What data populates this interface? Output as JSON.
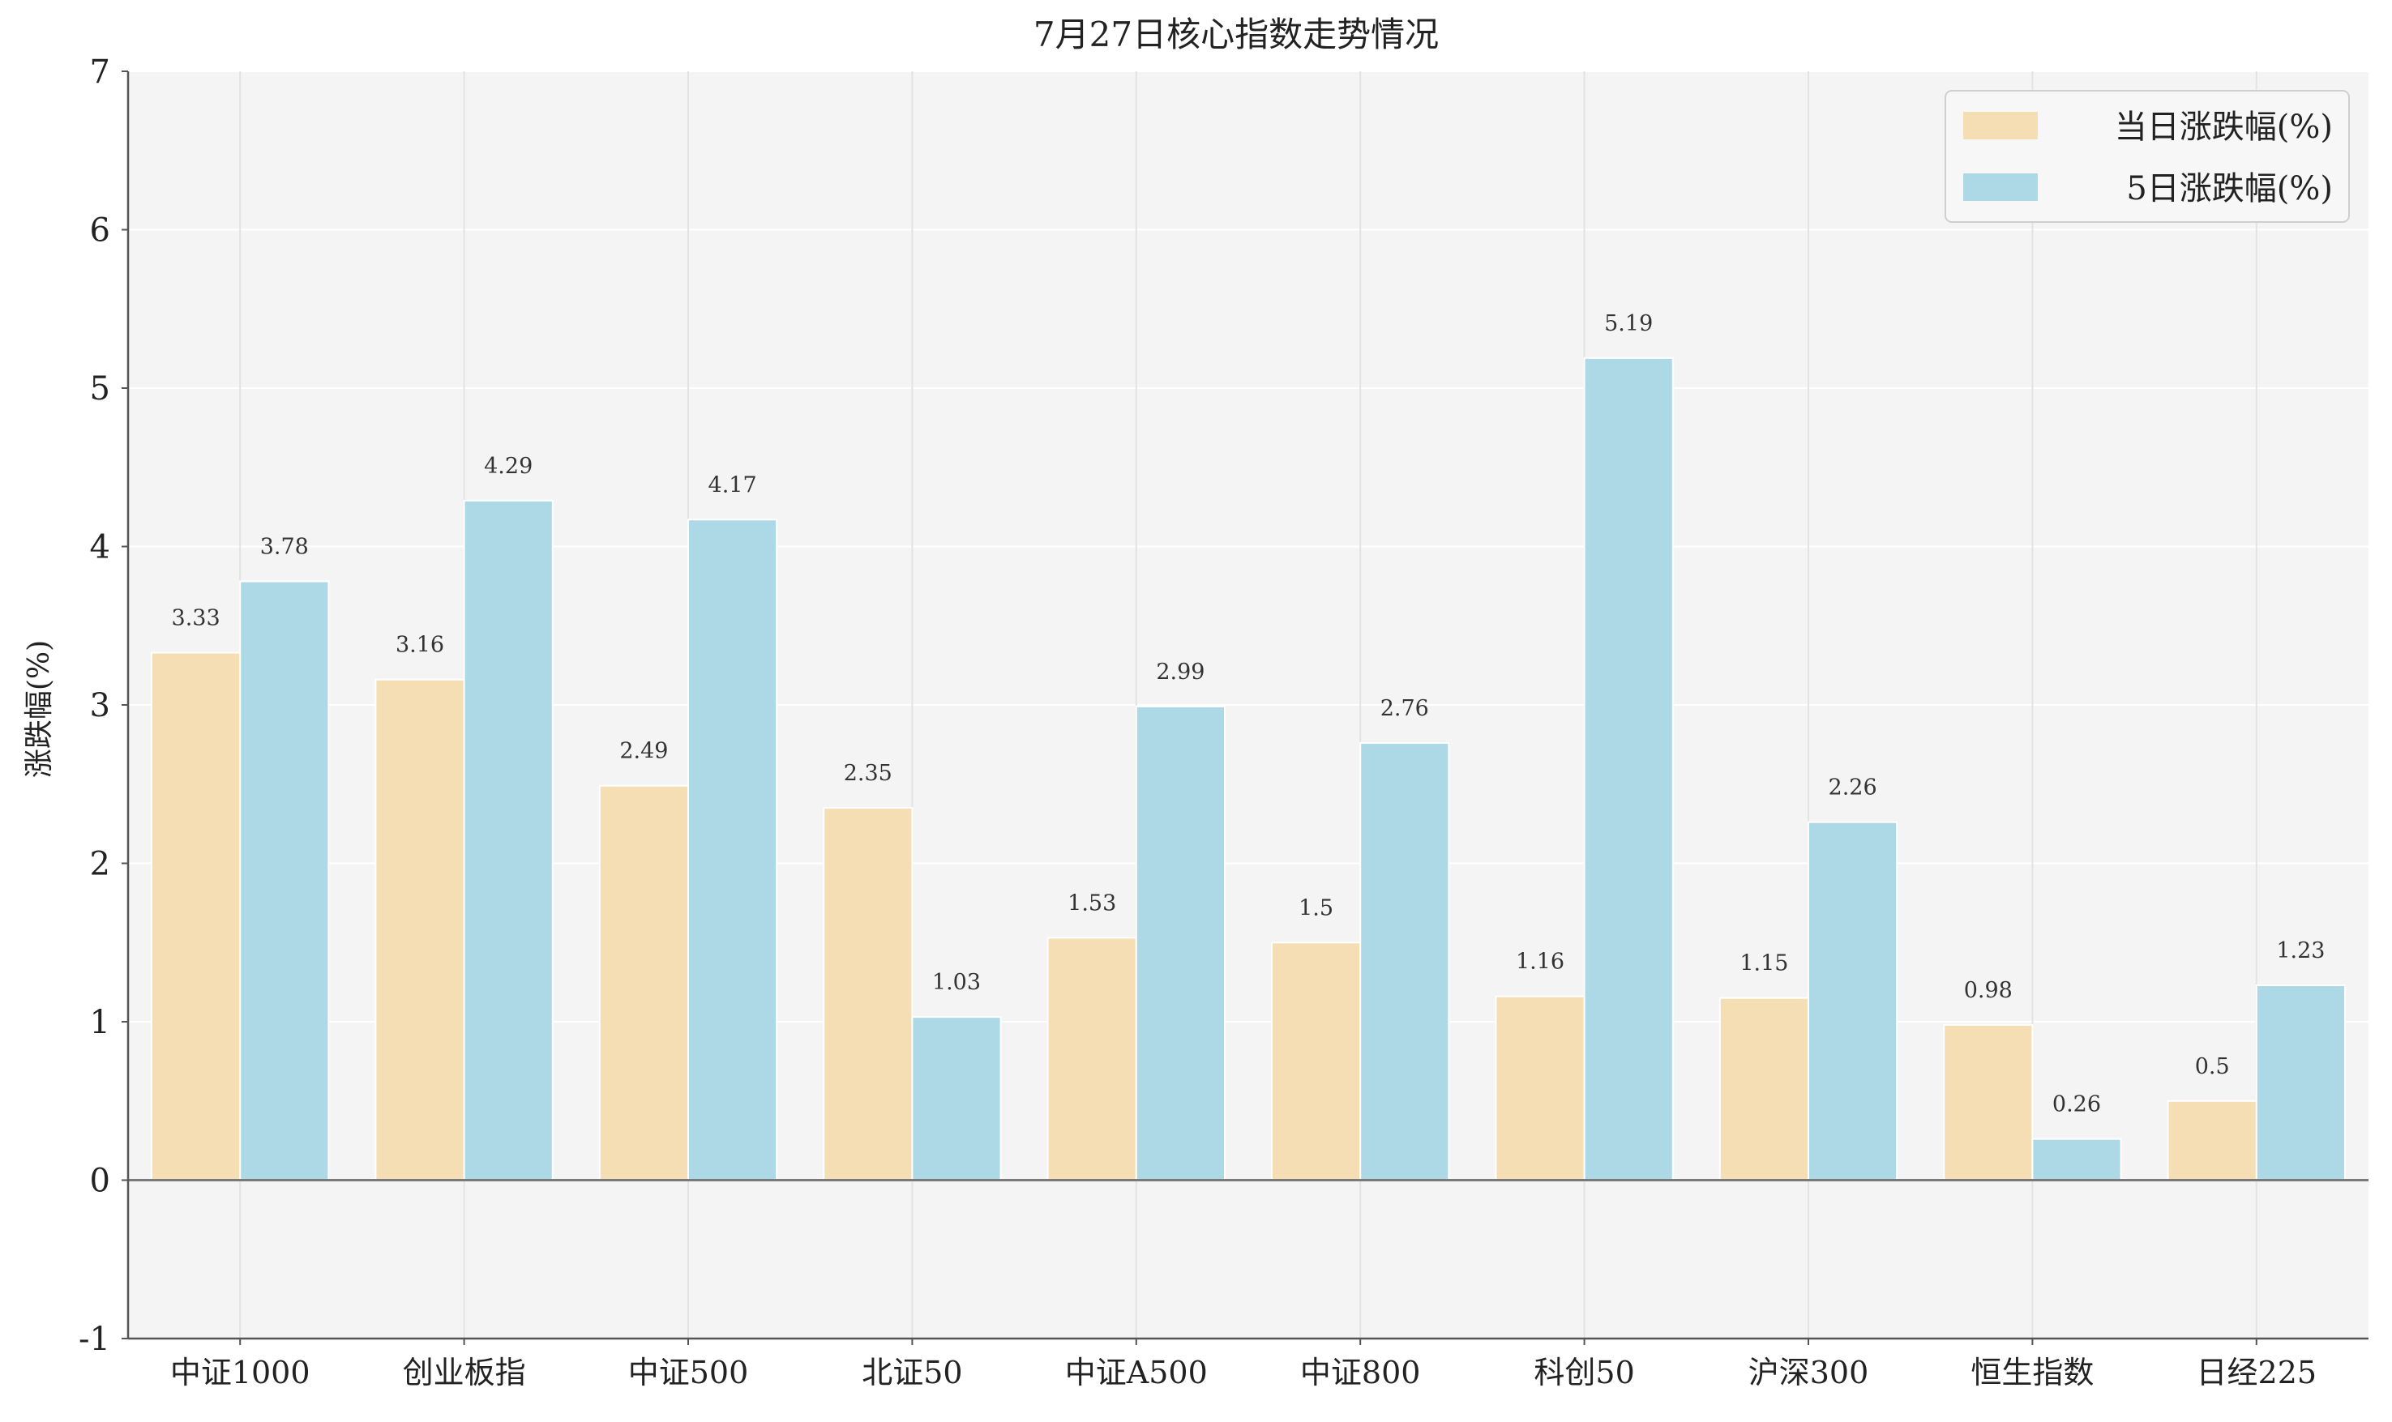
{
  "chart_data": {
    "type": "bar",
    "title": "7月27日核心指数走势情况",
    "xlabel": "",
    "ylabel": "涨跌幅(%)",
    "ylim": [
      -1,
      7
    ],
    "yticks": [
      -1,
      0,
      1,
      2,
      3,
      4,
      5,
      6,
      7
    ],
    "grid": true,
    "legend_position": "top-right",
    "categories": [
      "中证1000",
      "创业板指",
      "中证500",
      "北证50",
      "中证A500",
      "中证800",
      "科创50",
      "沪深300",
      "恒生指数",
      "日经225"
    ],
    "series": [
      {
        "name": "当日涨跌幅(%)",
        "color": "#F5DEB3",
        "values": [
          3.33,
          3.16,
          2.49,
          2.35,
          1.53,
          1.5,
          1.16,
          1.15,
          0.98,
          0.5
        ],
        "labels": [
          "3.33",
          "3.16",
          "2.49",
          "2.35",
          "1.53",
          "1.5",
          "1.16",
          "1.15",
          "0.98",
          "0.5"
        ]
      },
      {
        "name": "5日涨跌幅(%)",
        "color": "#ADD8E6",
        "values": [
          3.78,
          4.29,
          4.17,
          1.03,
          2.99,
          2.76,
          5.19,
          2.26,
          0.26,
          1.23
        ],
        "labels": [
          "3.78",
          "4.29",
          "4.17",
          "1.03",
          "2.99",
          "2.76",
          "5.19",
          "2.26",
          "0.26",
          "1.23"
        ]
      }
    ]
  }
}
